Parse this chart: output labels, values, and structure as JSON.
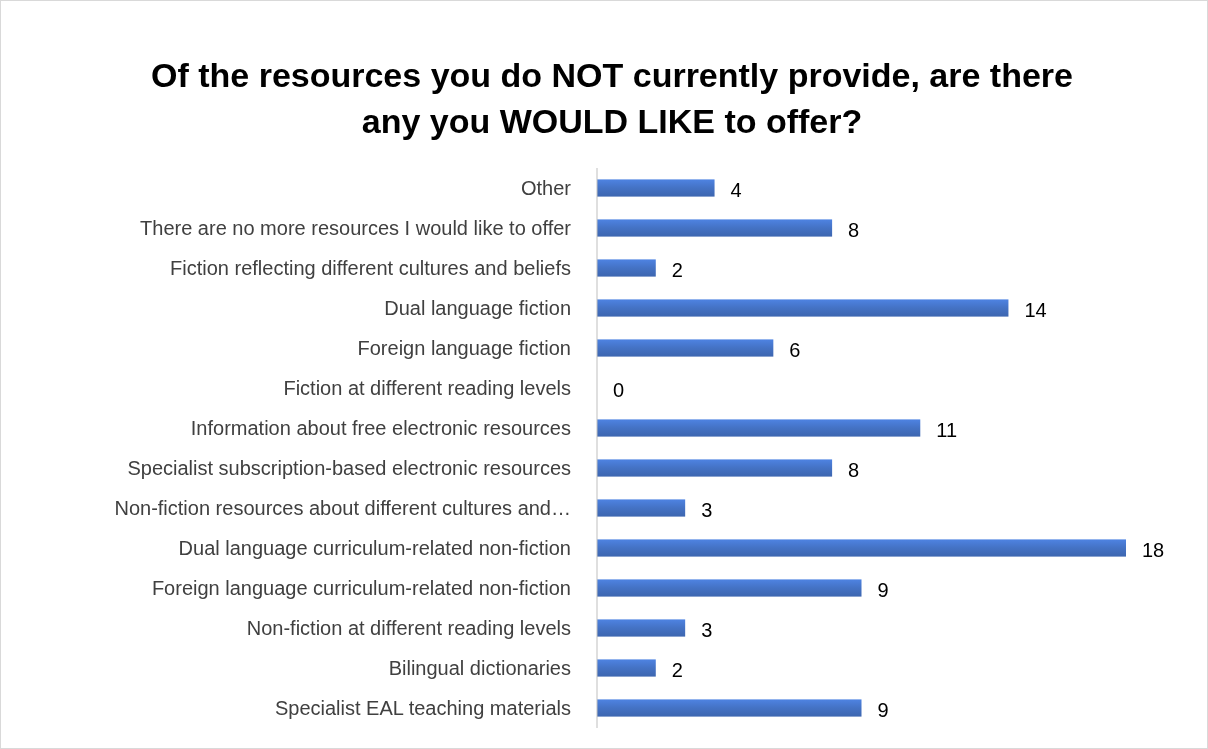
{
  "chart_data": {
    "type": "bar",
    "orientation": "horizontal",
    "title": "Of the resources you do NOT currently provide, are there any you WOULD LIKE to offer?",
    "categories": [
      "Other",
      "There are no more resources I would like to offer",
      "Fiction reflecting different cultures and beliefs",
      "Dual language fiction",
      "Foreign language fiction",
      "Fiction at different reading levels",
      "Information about free electronic resources",
      "Specialist subscription-based electronic resources",
      "Non-fiction resources about different cultures and…",
      "Dual language curriculum-related non-fiction",
      "Foreign language curriculum-related non-fiction",
      "Non-fiction at different reading levels",
      "Bilingual dictionaries",
      "Specialist EAL teaching materials"
    ],
    "values": [
      4,
      8,
      2,
      14,
      6,
      0,
      11,
      8,
      3,
      18,
      9,
      3,
      2,
      9
    ],
    "color": "#4472c4",
    "data_labels": true
  }
}
